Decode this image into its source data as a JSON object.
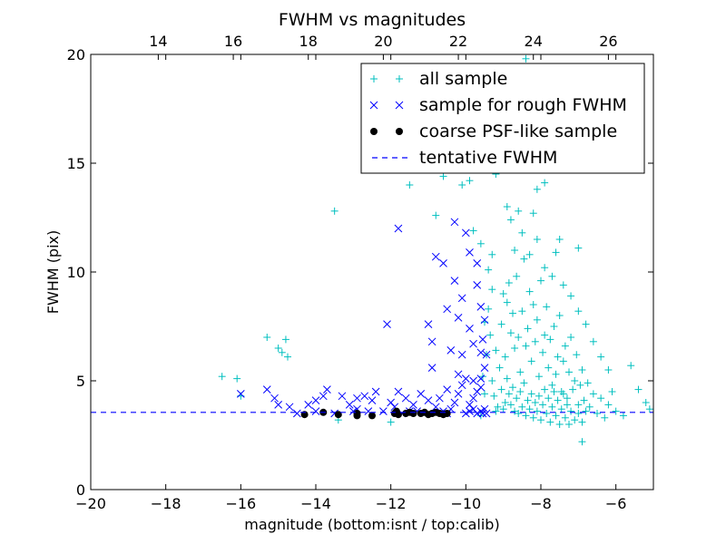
{
  "chart_data": {
    "type": "scatter",
    "title": "FWHM vs magnitudes",
    "xlabel": "magnitude (bottom:isnt / top:calib)",
    "ylabel": "FWHM (pix)",
    "xlim": [
      -20,
      -5
    ],
    "ylim": [
      0,
      20
    ],
    "x_ticks": [
      -20,
      -18,
      -16,
      -14,
      -12,
      -10,
      -8,
      -6
    ],
    "x_tick_labels": [
      "−20",
      "−18",
      "−16",
      "−14",
      "−12",
      "−10",
      "−8",
      "−6"
    ],
    "y_ticks": [
      0,
      5,
      10,
      15,
      20
    ],
    "y_tick_labels": [
      "0",
      "5",
      "10",
      "15",
      "20"
    ],
    "top_axis": {
      "label_offset": 32.2,
      "ticks": [
        14,
        16,
        18,
        20,
        22,
        24,
        26
      ],
      "tick_labels": [
        "14",
        "16",
        "18",
        "20",
        "22",
        "24",
        "26"
      ]
    },
    "grid": false,
    "legend_position": "top-right",
    "series": [
      {
        "name": "all sample",
        "marker": "plus",
        "color": "#00bfbf",
        "points": [
          [
            -16.5,
            5.2
          ],
          [
            -16.1,
            5.1
          ],
          [
            -16.0,
            4.3
          ],
          [
            -15.3,
            7.0
          ],
          [
            -15.0,
            6.5
          ],
          [
            -14.9,
            6.3
          ],
          [
            -14.8,
            6.9
          ],
          [
            -14.75,
            6.1
          ],
          [
            -13.5,
            12.8
          ],
          [
            -13.4,
            3.2
          ],
          [
            -12.0,
            3.1
          ],
          [
            -11.5,
            14.0
          ],
          [
            -10.8,
            12.6
          ],
          [
            -10.6,
            14.4
          ],
          [
            -10.1,
            14.0
          ],
          [
            -9.9,
            14.2
          ],
          [
            -9.8,
            11.9
          ],
          [
            -9.6,
            11.3
          ],
          [
            -9.6,
            3.4
          ],
          [
            -9.2,
            14.5
          ],
          [
            -9.2,
            3.6
          ],
          [
            -8.9,
            13.0
          ],
          [
            -8.8,
            12.4
          ],
          [
            -8.6,
            12.8
          ],
          [
            -8.2,
            12.7
          ],
          [
            -8.4,
            19.8
          ],
          [
            -8.6,
            15.4
          ],
          [
            -8.3,
            15.0
          ],
          [
            -8.1,
            13.8
          ],
          [
            -7.9,
            14.1
          ],
          [
            -7.5,
            11.5
          ],
          [
            -7.0,
            11.1
          ],
          [
            -6.9,
            2.2
          ],
          [
            -6.1,
            4.5
          ],
          [
            -5.6,
            5.7
          ],
          [
            -5.4,
            4.6
          ],
          [
            -5.2,
            4.0
          ],
          [
            -5.1,
            3.7
          ],
          [
            -9.0,
            9.0
          ],
          [
            -9.05,
            7.6
          ],
          [
            -8.95,
            6.1
          ],
          [
            -8.9,
            8.6
          ],
          [
            -8.85,
            9.5
          ],
          [
            -8.8,
            7.2
          ],
          [
            -8.75,
            8.1
          ],
          [
            -8.7,
            6.5
          ],
          [
            -8.65,
            9.8
          ],
          [
            -8.6,
            7.0
          ],
          [
            -8.55,
            5.4
          ],
          [
            -8.5,
            8.2
          ],
          [
            -8.45,
            10.6
          ],
          [
            -8.4,
            6.6
          ],
          [
            -8.35,
            7.4
          ],
          [
            -8.3,
            9.1
          ],
          [
            -8.25,
            5.9
          ],
          [
            -8.2,
            8.5
          ],
          [
            -8.15,
            6.8
          ],
          [
            -8.1,
            7.8
          ],
          [
            -8.05,
            5.2
          ],
          [
            -8.0,
            9.6
          ],
          [
            -7.95,
            6.3
          ],
          [
            -7.9,
            7.1
          ],
          [
            -7.85,
            8.4
          ],
          [
            -7.8,
            5.6
          ],
          [
            -7.75,
            6.9
          ],
          [
            -7.7,
            4.8
          ],
          [
            -7.65,
            7.5
          ],
          [
            -7.6,
            5.3
          ],
          [
            -7.55,
            6.1
          ],
          [
            -7.5,
            8.0
          ],
          [
            -7.45,
            4.5
          ],
          [
            -7.4,
            5.9
          ],
          [
            -7.35,
            6.6
          ],
          [
            -7.3,
            4.2
          ],
          [
            -7.25,
            5.4
          ],
          [
            -7.2,
            7.0
          ],
          [
            -7.15,
            4.6
          ],
          [
            -7.1,
            5.0
          ],
          [
            -7.05,
            6.2
          ],
          [
            -7.0,
            3.9
          ],
          [
            -6.95,
            4.8
          ],
          [
            -6.9,
            5.5
          ],
          [
            -6.85,
            4.1
          ],
          [
            -6.8,
            3.6
          ],
          [
            -6.75,
            4.9
          ],
          [
            -6.7,
            3.8
          ],
          [
            -6.6,
            4.4
          ],
          [
            -6.5,
            3.5
          ],
          [
            -6.4,
            4.2
          ],
          [
            -6.3,
            3.3
          ],
          [
            -6.2,
            3.9
          ],
          [
            -6.0,
            3.6
          ],
          [
            -5.8,
            3.4
          ],
          [
            -9.3,
            5.0
          ],
          [
            -9.25,
            4.3
          ],
          [
            -9.2,
            6.4
          ],
          [
            -9.15,
            3.8
          ],
          [
            -9.1,
            5.6
          ],
          [
            -9.05,
            4.6
          ],
          [
            -9.0,
            3.7
          ],
          [
            -8.95,
            4.0
          ],
          [
            -8.9,
            5.1
          ],
          [
            -8.85,
            4.4
          ],
          [
            -8.8,
            3.9
          ],
          [
            -8.75,
            4.7
          ],
          [
            -8.7,
            3.6
          ],
          [
            -8.65,
            4.2
          ],
          [
            -8.6,
            3.5
          ],
          [
            -8.55,
            4.5
          ],
          [
            -8.5,
            3.8
          ],
          [
            -8.45,
            4.9
          ],
          [
            -8.4,
            3.4
          ],
          [
            -8.35,
            4.1
          ],
          [
            -8.3,
            3.7
          ],
          [
            -8.25,
            4.4
          ],
          [
            -8.2,
            3.3
          ],
          [
            -8.15,
            4.0
          ],
          [
            -8.1,
            3.6
          ],
          [
            -8.05,
            4.3
          ],
          [
            -8.0,
            3.2
          ],
          [
            -7.95,
            3.9
          ],
          [
            -7.9,
            4.6
          ],
          [
            -7.85,
            3.5
          ],
          [
            -7.8,
            4.2
          ],
          [
            -7.75,
            3.1
          ],
          [
            -7.7,
            3.8
          ],
          [
            -7.65,
            4.5
          ],
          [
            -7.6,
            3.4
          ],
          [
            -7.55,
            4.1
          ],
          [
            -7.5,
            3.0
          ],
          [
            -7.45,
            3.7
          ],
          [
            -7.4,
            4.4
          ],
          [
            -7.35,
            3.3
          ],
          [
            -7.3,
            3.9
          ],
          [
            -7.25,
            3.0
          ],
          [
            -7.2,
            3.6
          ],
          [
            -7.1,
            3.2
          ],
          [
            -7.0,
            3.5
          ],
          [
            -6.9,
            3.1
          ],
          [
            -8.5,
            11.8
          ],
          [
            -8.7,
            11.0
          ],
          [
            -8.3,
            10.8
          ],
          [
            -8.1,
            11.5
          ],
          [
            -7.9,
            10.2
          ],
          [
            -7.7,
            9.8
          ],
          [
            -7.6,
            10.9
          ],
          [
            -7.4,
            9.4
          ],
          [
            -7.2,
            8.9
          ],
          [
            -7.0,
            8.2
          ],
          [
            -6.8,
            7.6
          ],
          [
            -6.6,
            6.8
          ],
          [
            -6.4,
            6.1
          ],
          [
            -6.2,
            5.5
          ],
          [
            -9.4,
            8.3
          ],
          [
            -9.35,
            7.1
          ],
          [
            -9.3,
            9.2
          ],
          [
            -9.45,
            6.2
          ],
          [
            -9.5,
            7.7
          ],
          [
            -9.4,
            10.1
          ],
          [
            -9.3,
            10.8
          ],
          [
            -9.55,
            5.2
          ],
          [
            -9.5,
            4.4
          ]
        ]
      },
      {
        "name": "sample for rough FWHM",
        "marker": "x",
        "color": "#0000ff",
        "points": [
          [
            -15.3,
            4.6
          ],
          [
            -15.1,
            4.2
          ],
          [
            -14.7,
            3.8
          ],
          [
            -14.2,
            3.9
          ],
          [
            -14.0,
            4.1
          ],
          [
            -13.8,
            4.3
          ],
          [
            -13.7,
            4.6
          ],
          [
            -13.3,
            4.3
          ],
          [
            -13.1,
            3.9
          ],
          [
            -12.9,
            3.7
          ],
          [
            -12.9,
            4.2
          ],
          [
            -12.7,
            4.3
          ],
          [
            -12.5,
            4.1
          ],
          [
            -12.4,
            4.5
          ],
          [
            -12.1,
            7.6
          ],
          [
            -12.0,
            4.0
          ],
          [
            -11.9,
            3.8
          ],
          [
            -11.8,
            4.5
          ],
          [
            -11.8,
            12.0
          ],
          [
            -11.6,
            4.2
          ],
          [
            -11.4,
            3.9
          ],
          [
            -11.2,
            4.4
          ],
          [
            -11.0,
            4.1
          ],
          [
            -11.0,
            7.6
          ],
          [
            -10.9,
            6.8
          ],
          [
            -10.9,
            5.6
          ],
          [
            -10.8,
            3.8
          ],
          [
            -10.8,
            10.7
          ],
          [
            -10.7,
            4.2
          ],
          [
            -10.6,
            10.4
          ],
          [
            -10.5,
            8.3
          ],
          [
            -10.5,
            4.6
          ],
          [
            -10.4,
            6.4
          ],
          [
            -10.3,
            9.6
          ],
          [
            -10.3,
            12.3
          ],
          [
            -10.2,
            7.9
          ],
          [
            -10.2,
            5.3
          ],
          [
            -10.1,
            6.2
          ],
          [
            -10.1,
            8.8
          ],
          [
            -10.0,
            11.8
          ],
          [
            -9.9,
            10.9
          ],
          [
            -9.9,
            7.4
          ],
          [
            -9.8,
            6.7
          ],
          [
            -9.8,
            5.0
          ],
          [
            -9.7,
            9.4
          ],
          [
            -9.7,
            10.4
          ],
          [
            -9.6,
            8.4
          ],
          [
            -9.6,
            6.3
          ],
          [
            -9.6,
            4.7
          ],
          [
            -9.5,
            7.8
          ],
          [
            -10.0,
            5.1
          ],
          [
            -10.1,
            4.8
          ],
          [
            -10.2,
            4.4
          ],
          [
            -10.3,
            4.0
          ],
          [
            -10.4,
            3.7
          ],
          [
            -10.5,
            3.5
          ],
          [
            -10.6,
            3.6
          ],
          [
            -10.0,
            3.5
          ],
          [
            -9.9,
            3.6
          ],
          [
            -9.8,
            3.7
          ],
          [
            -9.7,
            3.5
          ],
          [
            -9.6,
            3.6
          ],
          [
            -9.55,
            3.5
          ],
          [
            -9.5,
            3.7
          ],
          [
            -9.45,
            3.5
          ],
          [
            -9.9,
            3.9
          ],
          [
            -9.8,
            4.2
          ],
          [
            -9.7,
            4.5
          ],
          [
            -9.6,
            5.1
          ],
          [
            -9.5,
            5.6
          ],
          [
            -9.55,
            6.9
          ],
          [
            -9.45,
            6.2
          ],
          [
            -11.3,
            3.6
          ],
          [
            -11.5,
            3.6
          ],
          [
            -11.7,
            3.5
          ],
          [
            -12.2,
            3.6
          ],
          [
            -12.6,
            3.6
          ],
          [
            -13.0,
            3.6
          ],
          [
            -13.5,
            3.5
          ],
          [
            -14.0,
            3.6
          ],
          [
            -14.5,
            3.5
          ],
          [
            -15.0,
            3.9
          ],
          [
            -16.0,
            4.4
          ]
        ]
      },
      {
        "name": "coarse PSF-like sample",
        "marker": "circle",
        "color": "#000000",
        "points": [
          [
            -14.3,
            3.45
          ],
          [
            -13.8,
            3.55
          ],
          [
            -13.4,
            3.45
          ],
          [
            -12.9,
            3.5
          ],
          [
            -12.9,
            3.4
          ],
          [
            -12.5,
            3.4
          ],
          [
            -11.9,
            3.5
          ],
          [
            -11.85,
            3.6
          ],
          [
            -11.8,
            3.45
          ],
          [
            -11.6,
            3.5
          ],
          [
            -11.5,
            3.55
          ],
          [
            -11.4,
            3.5
          ],
          [
            -11.2,
            3.5
          ],
          [
            -11.1,
            3.55
          ],
          [
            -11.0,
            3.45
          ],
          [
            -10.9,
            3.5
          ],
          [
            -10.8,
            3.55
          ],
          [
            -10.7,
            3.5
          ],
          [
            -10.6,
            3.45
          ],
          [
            -10.5,
            3.5
          ]
        ]
      },
      {
        "name": "tentative FWHM",
        "marker": "dashed-line",
        "color": "#0000ff",
        "y": 3.55
      }
    ]
  }
}
